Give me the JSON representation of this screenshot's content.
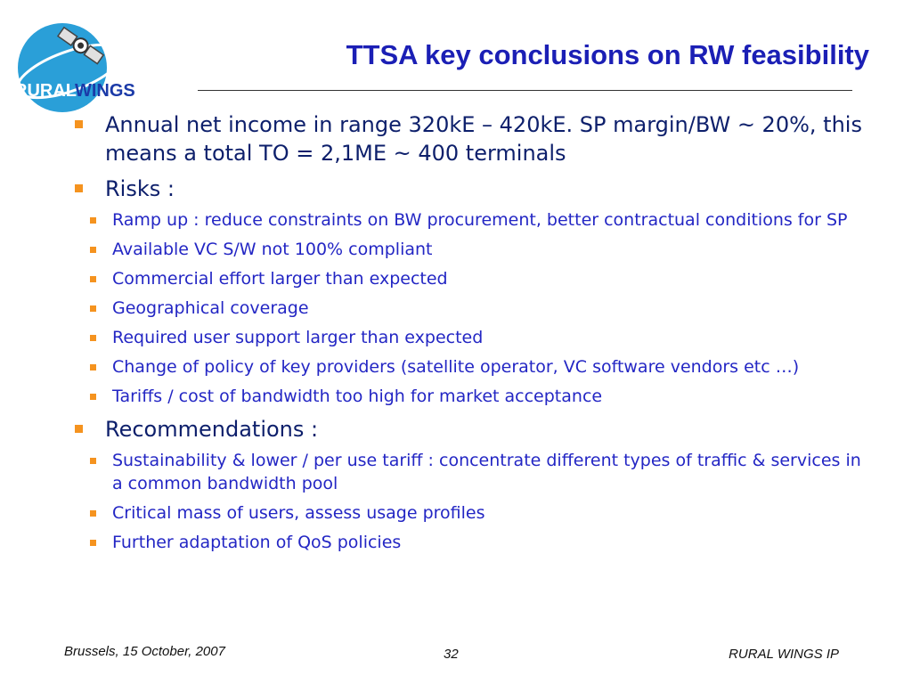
{
  "logo": {
    "text_rural": "RURAL",
    "text_wings": "WINGS"
  },
  "title": "TTSA key conclusions on RW feasibility",
  "bullets": [
    {
      "text": "Annual net income in range 320kE – 420kE. SP margin/BW ~ 20%, this means a total TO = 2,1ME ~ 400 terminals",
      "sub": []
    },
    {
      "text": "Risks :",
      "sub": [
        "Ramp up : reduce constraints on BW procurement, better contractual conditions for SP",
        "Available VC S/W not 100% compliant",
        "Commercial effort larger than expected",
        "Geographical coverage",
        "Required user support larger than expected",
        "Change of policy of key providers (satellite operator, VC software vendors etc …)",
        "Tariffs / cost of bandwidth too high for market acceptance"
      ]
    },
    {
      "text": "Recommendations :",
      "sub": [
        "Sustainability & lower / per use tariff : concentrate different types of traffic & services in a common bandwidth pool",
        "Critical mass of users, assess usage profiles",
        "Further adaptation of QoS policies"
      ]
    }
  ],
  "footer": {
    "left": "Brussels, 15 October, 2007",
    "page": "32",
    "right": "RURAL WINGS IP"
  },
  "colors": {
    "title": "#1b1fb5",
    "bullet": "#f5931f",
    "level1": "#0d1f6b",
    "level2": "#2326c4"
  }
}
